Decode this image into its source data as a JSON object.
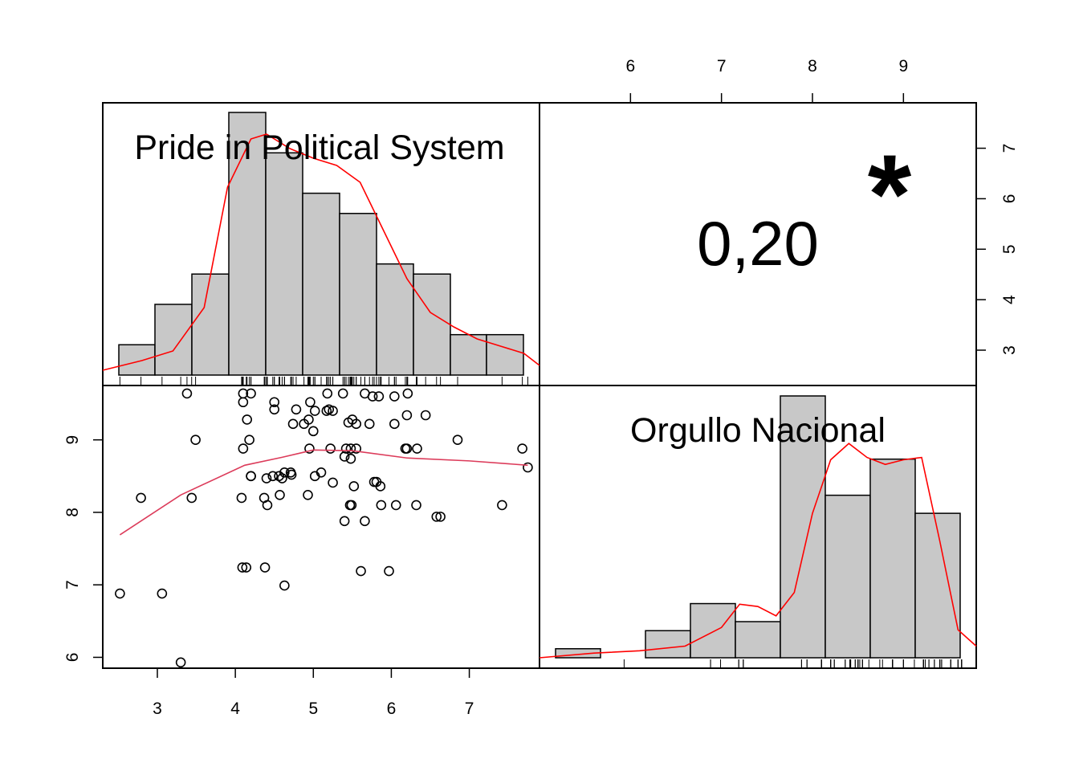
{
  "chart_data": {
    "type": "scatter",
    "variables": [
      "Pride in Political System",
      "Orgullo Nacional"
    ],
    "colors": {
      "bar_fill": "#c8c8c8",
      "density_line": "#ff0000",
      "smooth_line": "#dc3b5a",
      "star": "#dc3b5a"
    },
    "correlation": {
      "value": "0,20",
      "significance": "*"
    },
    "x_axis": {
      "label": "",
      "range": [
        2.3,
        7.9
      ],
      "ticks": [
        "3",
        "4",
        "5",
        "6",
        "7"
      ]
    },
    "y_axis": {
      "label": "",
      "range": [
        5.85,
        9.75
      ],
      "ticks": [
        "6",
        "7",
        "8",
        "9"
      ]
    },
    "top_axis": {
      "label": "",
      "range": [
        5.0,
        9.8
      ],
      "ticks": [
        "6",
        "7",
        "8",
        "9"
      ]
    },
    "right_axis": {
      "label": "",
      "range": [
        2.3,
        7.9
      ],
      "ticks": [
        "3",
        "4",
        "5",
        "6",
        "7"
      ]
    },
    "histogram_x": {
      "title": "Pride in Political System",
      "bins": [
        [
          2.5,
          3
        ],
        [
          3,
          3.5
        ],
        [
          3.5,
          4
        ],
        [
          4,
          4.5
        ],
        [
          4.5,
          5
        ],
        [
          5,
          5.5
        ],
        [
          5.5,
          6
        ],
        [
          5.5,
          6.0
        ],
        [
          6,
          6.5
        ],
        [
          6.5,
          7
        ],
        [
          7,
          7.5
        ],
        [
          7.5,
          8
        ]
      ],
      "counts": [
        3,
        7,
        10,
        26,
        22,
        18,
        16,
        0,
        11,
        10,
        4,
        4
      ],
      "density": [
        [
          2.3,
          0.02
        ],
        [
          2.8,
          0.06
        ],
        [
          3.2,
          0.1
        ],
        [
          3.6,
          0.28
        ],
        [
          3.9,
          0.78
        ],
        [
          4.2,
          0.98
        ],
        [
          4.4,
          1.0
        ],
        [
          4.7,
          0.94
        ],
        [
          5.0,
          0.9
        ],
        [
          5.3,
          0.87
        ],
        [
          5.6,
          0.8
        ],
        [
          5.9,
          0.6
        ],
        [
          6.2,
          0.4
        ],
        [
          6.5,
          0.26
        ],
        [
          6.8,
          0.2
        ],
        [
          7.1,
          0.15
        ],
        [
          7.4,
          0.12
        ],
        [
          7.7,
          0.09
        ],
        [
          7.9,
          0.04
        ]
      ]
    },
    "histogram_y": {
      "title": "Orgullo Nacional",
      "bins": [
        [
          5.9,
          6.3
        ],
        [
          6.3,
          6.75
        ],
        [
          6.75,
          7.2
        ],
        [
          7.2,
          7.6
        ],
        [
          7.6,
          8.0
        ],
        [
          8.0,
          8.4
        ],
        [
          8.4,
          8.8
        ],
        [
          8.8,
          9.2
        ],
        [
          9.2,
          9.6
        ]
      ],
      "counts": [
        1,
        0,
        3,
        6,
        4,
        29,
        18,
        22,
        16
      ],
      "density": [
        [
          5.0,
          0.0
        ],
        [
          5.6,
          0.02
        ],
        [
          6.1,
          0.03
        ],
        [
          6.6,
          0.05
        ],
        [
          7.0,
          0.13
        ],
        [
          7.2,
          0.23
        ],
        [
          7.4,
          0.22
        ],
        [
          7.6,
          0.18
        ],
        [
          7.8,
          0.28
        ],
        [
          8.0,
          0.62
        ],
        [
          8.2,
          0.85
        ],
        [
          8.4,
          0.92
        ],
        [
          8.6,
          0.86
        ],
        [
          8.8,
          0.83
        ],
        [
          9.0,
          0.85
        ],
        [
          9.2,
          0.86
        ],
        [
          9.4,
          0.5
        ],
        [
          9.6,
          0.12
        ],
        [
          9.8,
          0.05
        ]
      ]
    },
    "scatter": {
      "points": [
        [
          2.52,
          6.88
        ],
        [
          3.06,
          6.88
        ],
        [
          3.3,
          5.93
        ],
        [
          2.79,
          8.2
        ],
        [
          3.44,
          8.2
        ],
        [
          3.38,
          9.64
        ],
        [
          3.49,
          9.0
        ],
        [
          4.1,
          9.64
        ],
        [
          4.1,
          9.52
        ],
        [
          4.15,
          9.28
        ],
        [
          4.18,
          9.0
        ],
        [
          4.1,
          8.88
        ],
        [
          4.2,
          9.64
        ],
        [
          4.2,
          8.5
        ],
        [
          4.2,
          8.5
        ],
        [
          4.08,
          8.2
        ],
        [
          4.37,
          8.2
        ],
        [
          4.4,
          8.47
        ],
        [
          4.41,
          8.1
        ],
        [
          4.09,
          7.24
        ],
        [
          4.14,
          7.24
        ],
        [
          4.38,
          7.24
        ],
        [
          4.5,
          9.52
        ],
        [
          4.5,
          9.42
        ],
        [
          4.48,
          8.5
        ],
        [
          4.56,
          8.5
        ],
        [
          4.6,
          8.47
        ],
        [
          4.63,
          8.55
        ],
        [
          4.71,
          8.55
        ],
        [
          4.72,
          8.52
        ],
        [
          4.57,
          8.24
        ],
        [
          4.63,
          6.99
        ],
        [
          4.78,
          9.42
        ],
        [
          4.74,
          9.22
        ],
        [
          4.88,
          9.22
        ],
        [
          4.94,
          9.28
        ],
        [
          4.96,
          9.52
        ],
        [
          5.02,
          9.4
        ],
        [
          5.0,
          9.12
        ],
        [
          4.95,
          8.88
        ],
        [
          5.02,
          8.5
        ],
        [
          4.93,
          8.24
        ],
        [
          5.1,
          8.55
        ],
        [
          5.17,
          9.4
        ],
        [
          5.2,
          9.42
        ],
        [
          5.18,
          9.64
        ],
        [
          5.25,
          9.4
        ],
        [
          5.22,
          8.88
        ],
        [
          5.25,
          8.41
        ],
        [
          5.38,
          9.64
        ],
        [
          5.45,
          9.24
        ],
        [
          5.5,
          9.28
        ],
        [
          5.55,
          9.22
        ],
        [
          5.42,
          8.88
        ],
        [
          5.48,
          8.88
        ],
        [
          5.4,
          8.77
        ],
        [
          5.48,
          8.74
        ],
        [
          5.55,
          8.88
        ],
        [
          5.52,
          8.36
        ],
        [
          5.49,
          8.1
        ],
        [
          5.47,
          8.1
        ],
        [
          5.4,
          7.88
        ],
        [
          5.66,
          9.64
        ],
        [
          5.72,
          9.22
        ],
        [
          5.76,
          9.6
        ],
        [
          5.84,
          9.6
        ],
        [
          5.78,
          8.42
        ],
        [
          5.81,
          8.42
        ],
        [
          5.86,
          8.36
        ],
        [
          5.87,
          8.1
        ],
        [
          5.66,
          7.88
        ],
        [
          5.61,
          7.19
        ],
        [
          6.04,
          9.6
        ],
        [
          6.21,
          9.64
        ],
        [
          6.2,
          9.34
        ],
        [
          6.04,
          9.22
        ],
        [
          6.18,
          8.88
        ],
        [
          6.2,
          8.88
        ],
        [
          6.33,
          8.88
        ],
        [
          6.06,
          8.1
        ],
        [
          6.32,
          8.1
        ],
        [
          6.44,
          9.34
        ],
        [
          6.58,
          7.94
        ],
        [
          6.63,
          7.94
        ],
        [
          5.97,
          7.19
        ],
        [
          6.85,
          9.0
        ],
        [
          7.42,
          8.1
        ],
        [
          7.68,
          8.88
        ],
        [
          7.75,
          8.62
        ]
      ],
      "smooth": [
        [
          2.52,
          7.69
        ],
        [
          3.3,
          8.24
        ],
        [
          4.12,
          8.65
        ],
        [
          4.6,
          8.76
        ],
        [
          5.0,
          8.86
        ],
        [
          5.5,
          8.85
        ],
        [
          6.2,
          8.75
        ],
        [
          7.0,
          8.71
        ],
        [
          7.75,
          8.65
        ]
      ]
    }
  }
}
